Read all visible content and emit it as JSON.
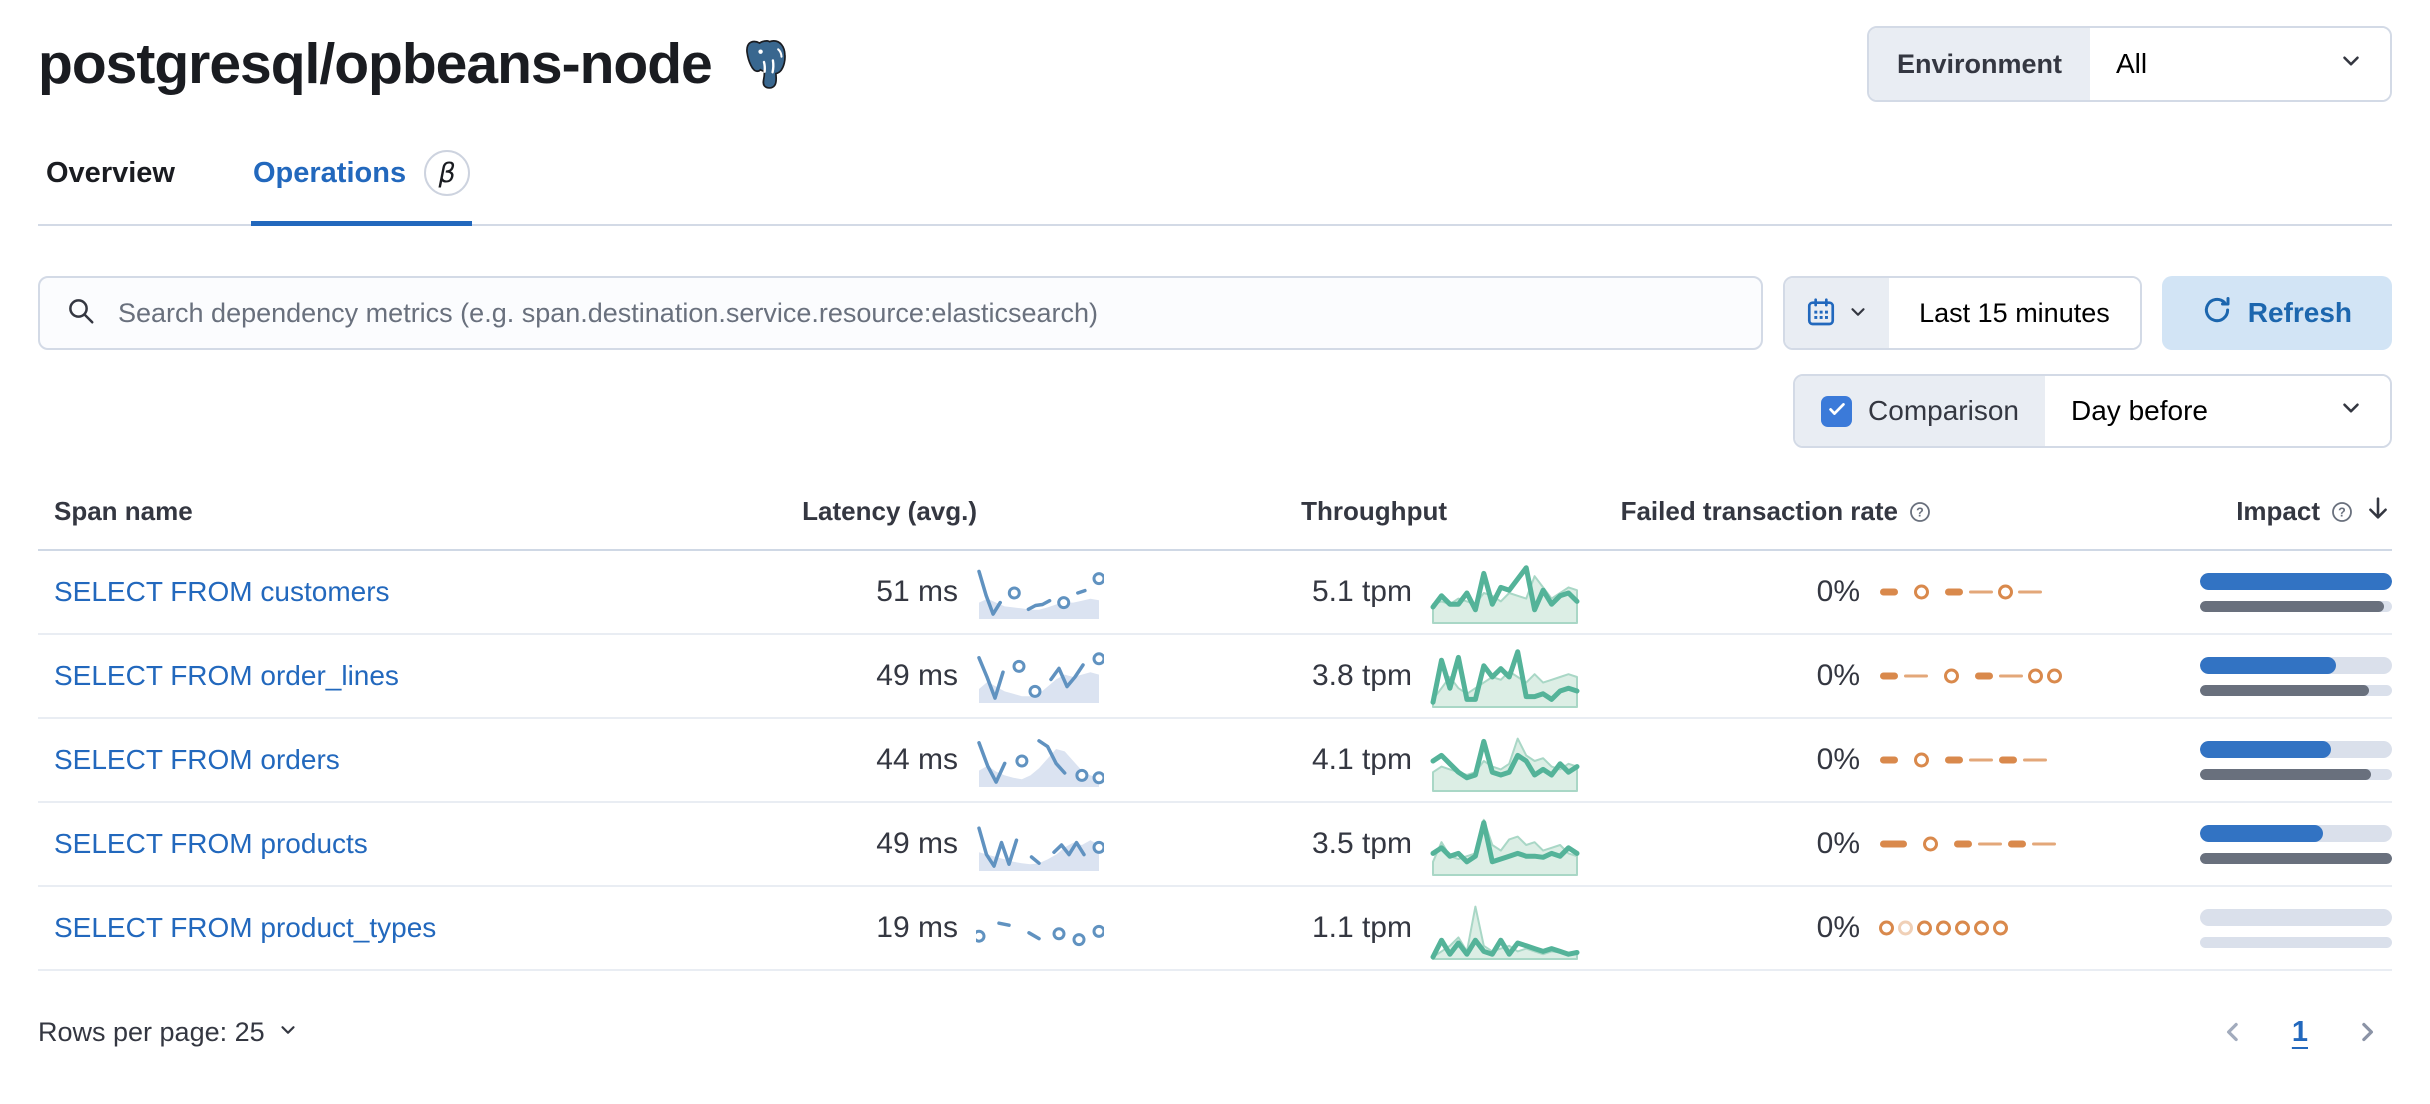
{
  "header": {
    "title": "postgresql/opbeans-node",
    "env_label": "Environment",
    "env_value": "All"
  },
  "tabs": [
    {
      "label": "Overview",
      "active": false
    },
    {
      "label": "Operations",
      "active": true,
      "badge": "β"
    }
  ],
  "controls": {
    "search_placeholder": "Search dependency metrics (e.g. span.destination.service.resource:elasticsearch)",
    "time_range": "Last 15 minutes",
    "refresh_label": "Refresh",
    "comparison_label": "Comparison",
    "comparison_checked": true,
    "comparison_value": "Day before"
  },
  "table": {
    "columns": [
      "Span name",
      "Latency (avg.)",
      "Throughput",
      "Failed transaction rate",
      "Impact"
    ],
    "rows": [
      {
        "name": "SELECT FROM customers",
        "latency": "51 ms",
        "latency_spark": {
          "current": [
            0.95,
            0.45,
            0.06,
            0.3,
            null,
            0.5,
            null,
            0.16,
            0.24,
            0.26,
            0.34,
            null,
            0.3,
            null,
            0.5,
            0.55,
            null,
            0.8
          ],
          "previous": [
            0.3,
            0.38,
            0.3,
            0.22,
            0.2,
            0.18,
            0.15,
            0.15,
            0.2,
            0.26,
            0.3,
            0.3,
            0.34,
            0.38,
            0.35
          ]
        },
        "throughput": "5.1 tpm",
        "throughput_spark": {
          "current": [
            0.25,
            0.45,
            0.3,
            0.3,
            0.5,
            0.2,
            0.85,
            0.3,
            0.6,
            0.55,
            0.75,
            0.95,
            0.2,
            0.55,
            0.3,
            0.45,
            0.5,
            0.35
          ],
          "previous": [
            0.3,
            0.35,
            0.3,
            0.4,
            0.35,
            0.3,
            0.5,
            0.45,
            0.35,
            0.5,
            0.45,
            0.4,
            0.8,
            0.6,
            0.4,
            0.5,
            0.6,
            0.55
          ]
        },
        "failed": "0%",
        "failed_spark": [
          "dash",
          "gap",
          "circle",
          "gap",
          "dash",
          "thin",
          "circle",
          "thin"
        ],
        "impact": {
          "current": 100,
          "previous": 96
        }
      },
      {
        "name": "SELECT FROM order_lines",
        "latency": "49 ms",
        "latency_spark": {
          "current": [
            0.9,
            0.5,
            0.06,
            0.6,
            null,
            0.72,
            null,
            0.2,
            null,
            0.45,
            0.68,
            0.3,
            0.5,
            0.75,
            null,
            0.88
          ],
          "previous": [
            0.25,
            0.4,
            0.3,
            0.2,
            0.15,
            0.1,
            0.1,
            0.15,
            0.3,
            0.45,
            0.55,
            0.5,
            0.55,
            0.6,
            0.55
          ]
        },
        "throughput": "3.8 tpm",
        "throughput_spark": {
          "current": [
            0.05,
            0.8,
            0.3,
            0.85,
            0.1,
            0.1,
            0.7,
            0.5,
            0.65,
            0.5,
            0.95,
            0.15,
            0.15,
            0.2,
            0.1,
            0.25,
            0.3,
            0.25
          ],
          "previous": [
            0.1,
            0.3,
            0.5,
            0.3,
            0.2,
            0.3,
            0.4,
            0.5,
            0.45,
            0.6,
            0.5,
            0.4,
            0.55,
            0.4,
            0.45,
            0.5,
            0.55,
            0.5
          ]
        },
        "failed": "0%",
        "failed_spark": [
          "dash",
          "thin",
          "gap",
          "circle",
          "gap",
          "dash",
          "thin",
          "circle",
          "circle"
        ],
        "impact": {
          "current": 71,
          "previous": 88
        }
      },
      {
        "name": "SELECT FROM orders",
        "latency": "44 ms",
        "latency_spark": {
          "current": [
            0.88,
            0.4,
            0.06,
            0.45,
            null,
            0.5,
            null,
            0.92,
            0.8,
            0.45,
            0.25,
            null,
            0.2,
            null,
            0.15
          ],
          "previous": [
            0.3,
            0.4,
            0.28,
            0.2,
            0.15,
            0.12,
            0.2,
            0.35,
            0.55,
            0.75,
            0.7,
            0.5,
            0.3,
            0.2,
            0.15
          ]
        },
        "throughput": "4.1 tpm",
        "throughput_spark": {
          "current": [
            0.5,
            0.6,
            0.45,
            0.3,
            0.2,
            0.25,
            0.85,
            0.3,
            0.25,
            0.3,
            0.6,
            0.5,
            0.25,
            0.35,
            0.25,
            0.45,
            0.3,
            0.4
          ],
          "previous": [
            0.3,
            0.4,
            0.35,
            0.3,
            0.25,
            0.3,
            0.5,
            0.4,
            0.35,
            0.45,
            0.9,
            0.6,
            0.5,
            0.55,
            0.4,
            0.35,
            0.45,
            0.4
          ]
        },
        "failed": "0%",
        "failed_spark": [
          "dash",
          "gap",
          "circle",
          "gap",
          "dash",
          "thin",
          "dash",
          "thin"
        ],
        "impact": {
          "current": 68,
          "previous": 89
        }
      },
      {
        "name": "SELECT FROM products",
        "latency": "49 ms",
        "latency_spark": {
          "current": [
            0.85,
            0.3,
            0.06,
            0.55,
            0.1,
            0.6,
            null,
            0.25,
            0.12,
            null,
            0.35,
            0.5,
            0.3,
            0.55,
            0.3,
            null,
            0.45
          ],
          "previous": [
            0.35,
            0.3,
            0.25,
            0.2,
            0.15,
            0.12,
            0.1,
            0.12,
            0.2,
            0.3,
            0.45,
            0.55,
            0.5,
            0.6,
            0.5
          ]
        },
        "throughput": "3.5 tpm",
        "throughput_spark": {
          "current": [
            0.35,
            0.45,
            0.3,
            0.35,
            0.2,
            0.3,
            0.9,
            0.2,
            0.25,
            0.3,
            0.35,
            0.3,
            0.3,
            0.28,
            0.35,
            0.3,
            0.45,
            0.35
          ],
          "previous": [
            0.2,
            0.55,
            0.3,
            0.25,
            0.3,
            0.35,
            0.95,
            0.5,
            0.4,
            0.6,
            0.65,
            0.5,
            0.55,
            0.4,
            0.45,
            0.5,
            0.35,
            0.3
          ]
        },
        "failed": "0%",
        "failed_spark": [
          "dashwide",
          "gap",
          "circle",
          "gap",
          "dash",
          "thin",
          "dash",
          "thin"
        ],
        "impact": {
          "current": 64,
          "previous": 100
        }
      },
      {
        "name": "SELECT FROM product_types",
        "latency": "19 ms",
        "latency_spark": {
          "current": [
            0.35,
            null,
            0.62,
            0.58,
            null,
            0.42,
            0.3,
            null,
            0.4,
            null,
            0.28,
            null,
            0.45
          ],
          "previous": []
        },
        "throughput": "1.1 tpm",
        "throughput_spark": {
          "current": [
            0,
            0.3,
            0.05,
            0.25,
            0.05,
            0.3,
            0.1,
            0.05,
            0.3,
            0.05,
            0.25,
            0.2,
            0.15,
            0.1,
            0.15,
            0.1,
            0.05,
            0.08
          ],
          "previous": [
            0,
            0.1,
            0.2,
            0.35,
            0.1,
            0.9,
            0.2,
            0.1,
            0.15,
            0.2,
            0.1,
            0.15,
            0.1,
            0.05,
            0.1,
            0.08,
            0.05,
            0.05
          ]
        },
        "failed": "0%",
        "failed_spark": [
          "circle",
          "circlelight",
          "circle",
          "circle",
          "circle",
          "circle",
          "circle"
        ],
        "impact": {
          "current": 0,
          "previous": 0
        }
      }
    ]
  },
  "footer": {
    "rows_per_page": "Rows per page: 25",
    "page": "1"
  },
  "icons": {
    "question_glyph": "?",
    "names": [
      "postgresql-logo-icon",
      "search-icon",
      "calendar-icon",
      "chevron-down-icon",
      "refresh-icon",
      "check-icon",
      "question-circle-icon",
      "sort-desc-icon",
      "chevron-left-icon",
      "chevron-right-icon"
    ]
  },
  "colors": {
    "accent_link": "#2268BD",
    "impact_blue": "#3273C3",
    "impact_gray": "#69707D",
    "track_gray": "#DAE0EB",
    "spark_blue": "#6092C0",
    "spark_blue_area": "#DBE3F1",
    "spark_green": "#54B399",
    "spark_green_area": "#DCEEE5",
    "spark_green_edge": "#A9D7C6",
    "spark_orange": "#D9894C",
    "checkbox_blue": "#3B7AD9",
    "refresh_bg": "#D2E4F5",
    "refresh_text": "#1C66AE",
    "segment_bg": "#E9EDF3",
    "border": "#D3DAE6",
    "text": "#343741",
    "title": "#1A1C21",
    "subdued": "#69707D"
  }
}
